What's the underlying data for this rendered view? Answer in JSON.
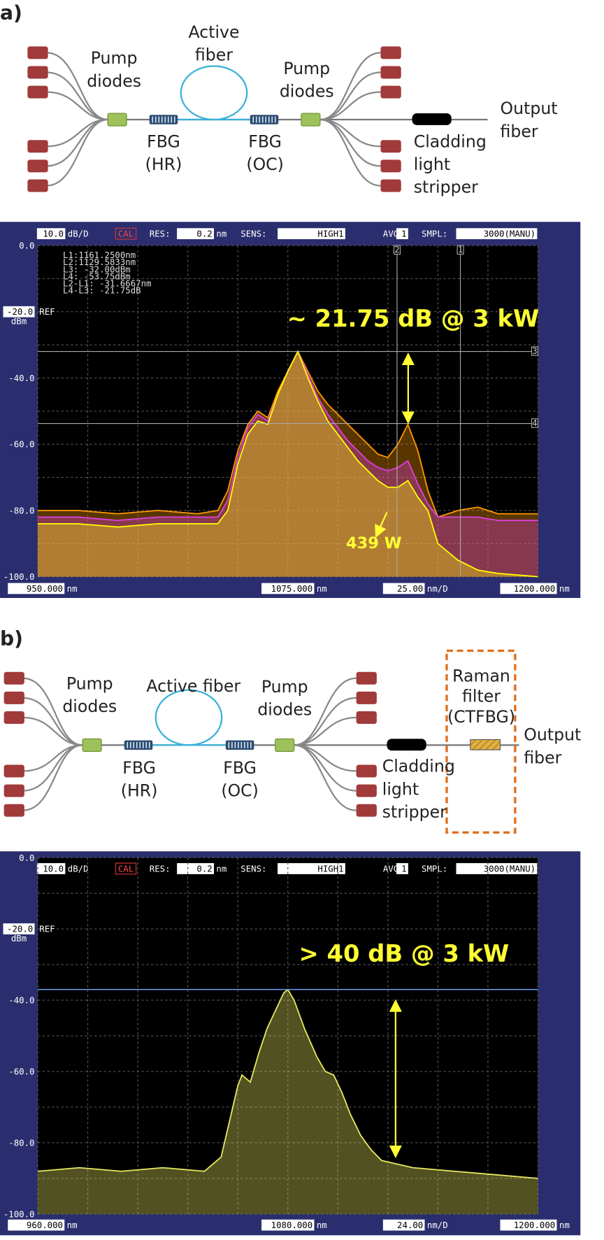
{
  "diagrams": [
    {
      "label": "a)",
      "pump_left": "Pump diodes",
      "active_fiber": "Active fiber",
      "fbg_hr": "FBG (HR)",
      "fbg_oc": "FBG (OC)",
      "pump_right": "Pump diodes",
      "stripper": "Cladding light stripper",
      "output": "Output fiber"
    },
    {
      "label": "b)",
      "pump_left": "Pump diodes",
      "active_fiber": "Active fiber",
      "fbg_hr": "FBG (HR)",
      "fbg_oc": "FBG (OC)",
      "pump_right": "Pump diodes",
      "stripper": "Cladding light stripper",
      "filter": "Raman filter (CTFBG)",
      "output": "Output fiber"
    }
  ],
  "chart_data": [
    {
      "type": "line",
      "header": {
        "scale": "10.0",
        "scale_unit": "dB/D",
        "cal": "CAL",
        "res_label": "RES:",
        "res": "0.2",
        "res_unit": "nm",
        "sens_label": "SENS:",
        "sens": "HIGH1",
        "avg_label": "AVG:",
        "avg": "1",
        "smpl_label": "SMPL:",
        "smpl": "3000(MANU)"
      },
      "x": [
        950,
        970,
        990,
        1010,
        1030,
        1040,
        1045,
        1050,
        1055,
        1060,
        1065,
        1070,
        1075,
        1080,
        1085,
        1090,
        1095,
        1100,
        1105,
        1110,
        1115,
        1120,
        1125,
        1130,
        1135,
        1140,
        1145,
        1150,
        1160,
        1170,
        1180,
        1200
      ],
      "xlim": [
        950,
        1200
      ],
      "xticks": [
        {
          "value": 950,
          "label": "950.000"
        },
        {
          "value": 1075,
          "label": "1075.000"
        },
        {
          "value": 1200,
          "label": "1200.000"
        }
      ],
      "x_unit": "nm",
      "span": "25.00",
      "span_unit": "nm/D",
      "ylim": [
        -100,
        0
      ],
      "yticks": [
        {
          "value": 0,
          "label": "0.0"
        },
        {
          "value": -20,
          "label": "-20.0"
        },
        {
          "value": -40,
          "label": "-40.0"
        },
        {
          "value": -60,
          "label": "-60.0"
        },
        {
          "value": -80,
          "label": "-80.0"
        },
        {
          "value": -100,
          "label": "-100.0"
        }
      ],
      "ref_label": "REF",
      "y_unit": "dBm",
      "grid": true,
      "series": [
        {
          "color": "#ff9900",
          "values": [
            -80,
            -80,
            -81,
            -80,
            -81,
            -80,
            -74,
            -62,
            -54,
            -50,
            -52,
            -44,
            -38,
            -32,
            -38,
            -44,
            -48,
            -51,
            -54,
            -57,
            -60,
            -63,
            -64,
            -60,
            -54,
            -62,
            -74,
            -82,
            -80,
            -79,
            -81,
            -81
          ]
        },
        {
          "color": "#e040e0",
          "values": [
            -82,
            -82,
            -83,
            -82,
            -82,
            -82,
            -77,
            -64,
            -55,
            -51,
            -53,
            -45,
            -38,
            -32,
            -39,
            -46,
            -51,
            -55,
            -59,
            -62,
            -65,
            -67,
            -68,
            -67,
            -65,
            -72,
            -78,
            -82,
            -82,
            -82,
            -83,
            -83
          ]
        },
        {
          "color": "#ffff00",
          "values": [
            -84,
            -84,
            -85,
            -84,
            -84,
            -84,
            -80,
            -66,
            -57,
            -53,
            -54,
            -45,
            -38,
            -32,
            -40,
            -47,
            -53,
            -57,
            -61,
            -65,
            -68,
            -71,
            -73,
            -73,
            -71,
            -76,
            -80,
            -90,
            -95,
            -98,
            -99,
            -100
          ]
        }
      ],
      "markers": {
        "lines": [
          "L1:1161.2500nm",
          "L2:1129.5833nm",
          "L3: -32.00dBm",
          "L4: -53.75dBm",
          "L2-L1: -31.6667nm",
          "L4-L3: -21.75dB"
        ],
        "x": [
          1161.25,
          1129.5833
        ],
        "y": [
          -32,
          -53.75
        ],
        "tags": [
          "1",
          "2",
          "3",
          "4"
        ]
      },
      "annotations": [
        "~ 21.75 dB @ 3 kW",
        "439 W"
      ]
    },
    {
      "type": "line",
      "header": {
        "scale": "10.0",
        "scale_unit": "dB/D",
        "cal": "CAL",
        "res_label": "RES:",
        "res": "0.2",
        "res_unit": "nm",
        "sens_label": "SENS:",
        "sens": "HIGH1",
        "avg_label": "AVG:",
        "avg": "1",
        "smpl_label": "SMPL:",
        "smpl": "3000(MANU)"
      },
      "x": [
        960,
        980,
        1000,
        1020,
        1040,
        1048,
        1052,
        1056,
        1058,
        1062,
        1066,
        1070,
        1074,
        1078,
        1080,
        1083,
        1088,
        1094,
        1098,
        1102,
        1106,
        1110,
        1115,
        1120,
        1125,
        1140,
        1160,
        1180,
        1200
      ],
      "xlim": [
        960,
        1200
      ],
      "xticks": [
        {
          "value": 960,
          "label": "960.000"
        },
        {
          "value": 1080,
          "label": "1080.000"
        },
        {
          "value": 1200,
          "label": "1200.000"
        }
      ],
      "x_unit": "nm",
      "span": "24.00",
      "span_unit": "nm/D",
      "ylim": [
        -100,
        0
      ],
      "yticks": [
        {
          "value": 0,
          "label": "0.0"
        },
        {
          "value": -20,
          "label": "-20.0"
        },
        {
          "value": -40,
          "label": "-40.0"
        },
        {
          "value": -60,
          "label": "-60.0"
        },
        {
          "value": -80,
          "label": "-80.0"
        },
        {
          "value": -100,
          "label": "-100.0"
        }
      ],
      "ref_label": "REF",
      "y_unit": "dBm",
      "grid": true,
      "series": [
        {
          "color": "#e8e860",
          "values": [
            -88,
            -87,
            -88,
            -87,
            -88,
            -84,
            -74,
            -64,
            -61,
            -63,
            -55,
            -48,
            -43,
            -38,
            -37,
            -40,
            -48,
            -56,
            -60,
            -61,
            -66,
            -72,
            -78,
            -82,
            -85,
            -87,
            -88,
            -89,
            -90
          ]
        }
      ],
      "annotations": [
        "> 40 dB @ 3 kW"
      ]
    }
  ]
}
